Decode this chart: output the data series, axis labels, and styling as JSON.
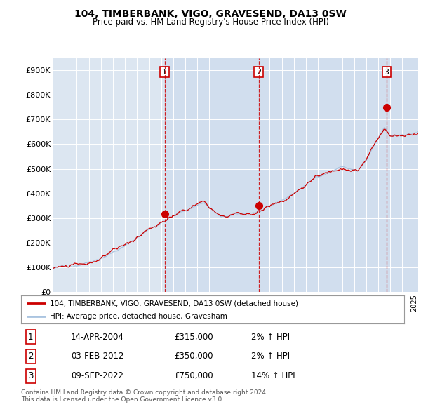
{
  "title": "104, TIMBERBANK, VIGO, GRAVESEND, DA13 0SW",
  "subtitle": "Price paid vs. HM Land Registry's House Price Index (HPI)",
  "bg_color": "#dce6f1",
  "sale_color": "#cc0000",
  "hpi_color": "#aac4e0",
  "shade_color": "#dce6f1",
  "ylim": [
    0,
    950000
  ],
  "yticks": [
    0,
    100000,
    200000,
    300000,
    400000,
    500000,
    600000,
    700000,
    800000,
    900000
  ],
  "ytick_labels": [
    "£0",
    "£100K",
    "£200K",
    "£300K",
    "£400K",
    "£500K",
    "£600K",
    "£700K",
    "£800K",
    "£900K"
  ],
  "sale_dates": [
    2004.29,
    2012.09,
    2022.69
  ],
  "sale_prices": [
    315000,
    350000,
    750000
  ],
  "sale_labels": [
    "1",
    "2",
    "3"
  ],
  "vline_color": "#cc0000",
  "legend_sale_label": "104, TIMBERBANK, VIGO, GRAVESEND, DA13 0SW (detached house)",
  "legend_hpi_label": "HPI: Average price, detached house, Gravesham",
  "table_rows": [
    [
      "1",
      "14-APR-2004",
      "£315,000",
      "2% ↑ HPI"
    ],
    [
      "2",
      "03-FEB-2012",
      "£350,000",
      "2% ↑ HPI"
    ],
    [
      "3",
      "09-SEP-2022",
      "£750,000",
      "14% ↑ HPI"
    ]
  ],
  "footer": "Contains HM Land Registry data © Crown copyright and database right 2024.\nThis data is licensed under the Open Government Licence v3.0.",
  "xmin": 1995,
  "xmax": 2025.3
}
